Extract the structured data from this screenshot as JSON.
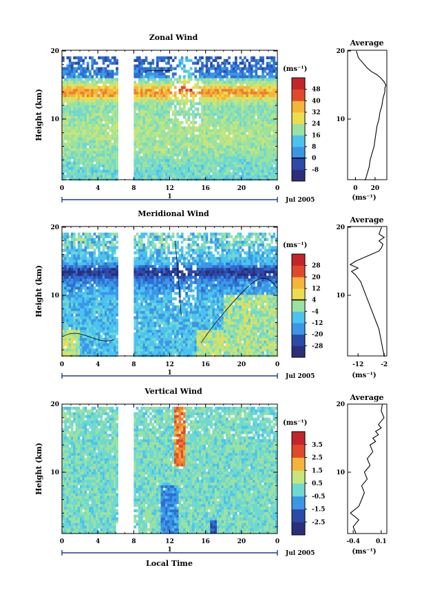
{
  "chart_data": [
    {
      "type": "heatmap",
      "title": "Zonal Wind",
      "ylabel": "Height (km)",
      "xlabel": "",
      "x_ticks": [
        "0",
        "4",
        "8",
        "12",
        "16",
        "20",
        "0"
      ],
      "y_ticks": [
        "10",
        "20"
      ],
      "xlim": [
        0,
        24
      ],
      "ylim": [
        1,
        20
      ],
      "date_axis": {
        "marker": "1",
        "label": "Jul 2005"
      },
      "colorbar": {
        "unit": "(ms⁻¹)",
        "levels": [
          "-8",
          "0",
          "8",
          "16",
          "24",
          "32",
          "40",
          "48"
        ],
        "range": [
          -12,
          52
        ]
      },
      "gap_hours": [
        [
          6.2,
          8.1
        ]
      ],
      "profile": {
        "title": "Average",
        "x_ticks": [
          "0",
          "20"
        ],
        "y_ticks": [
          "10",
          "20"
        ],
        "xlim": [
          -8,
          32
        ],
        "ylim": [
          1,
          20
        ],
        "xunit": "(ms⁻¹)",
        "x": [
          10,
          12,
          14,
          15,
          17,
          19,
          20,
          21,
          22,
          24,
          25,
          27,
          28,
          30,
          30,
          31,
          29,
          26,
          22,
          16,
          12,
          9,
          6,
          3,
          1
        ],
        "y": [
          1,
          2,
          3,
          4,
          5,
          6,
          7,
          8,
          9,
          10,
          11,
          12,
          13,
          14,
          14.5,
          15,
          15.5,
          16,
          16.5,
          17,
          17.5,
          18,
          18.5,
          19,
          20
        ]
      }
    },
    {
      "type": "heatmap",
      "title": "Meridional Wind",
      "ylabel": "Height (km)",
      "xlabel": "",
      "x_ticks": [
        "0",
        "4",
        "8",
        "12",
        "16",
        "20",
        "0"
      ],
      "y_ticks": [
        "10",
        "20"
      ],
      "xlim": [
        0,
        24
      ],
      "ylim": [
        1,
        20
      ],
      "date_axis": {
        "marker": "1",
        "label": "Jul 2005"
      },
      "colorbar": {
        "unit": "(ms⁻¹)",
        "levels": [
          "-28",
          "-20",
          "-12",
          "-4",
          "4",
          "12",
          "20",
          "28"
        ],
        "range": [
          -32,
          32
        ]
      },
      "gap_hours": [
        [
          6.2,
          8.1
        ]
      ],
      "profile": {
        "title": "Average",
        "x_ticks": [
          "-12",
          "-2"
        ],
        "y_ticks": [
          "10",
          "20"
        ],
        "xlim": [
          -16,
          -1
        ],
        "ylim": [
          1,
          20
        ],
        "xunit": "(ms⁻¹)",
        "x": [
          -2,
          -2.5,
          -3,
          -3.5,
          -4,
          -5,
          -6,
          -7,
          -8,
          -9,
          -10,
          -11,
          -12,
          -13,
          -14.5,
          -12,
          -15,
          -13,
          -10,
          -7,
          -4,
          -3,
          -2.5,
          -4,
          -2,
          -4,
          -3
        ],
        "y": [
          1,
          2,
          3,
          4,
          5,
          6,
          7,
          8,
          9,
          10,
          11,
          12,
          12.5,
          13,
          13.5,
          14,
          14.5,
          15,
          15.5,
          16,
          16.5,
          17,
          17.5,
          18,
          18.5,
          19,
          20
        ]
      }
    },
    {
      "type": "heatmap",
      "title": "Vertical Wind",
      "ylabel": "Height (km)",
      "xlabel": "Local Time",
      "x_ticks": [
        "0",
        "4",
        "8",
        "12",
        "16",
        "20",
        "0"
      ],
      "y_ticks": [
        "10",
        "20"
      ],
      "xlim": [
        0,
        24
      ],
      "ylim": [
        1,
        20
      ],
      "date_axis": {
        "marker": "1",
        "label": "Jul 2005"
      },
      "colorbar": {
        "unit": "(ms⁻¹)",
        "levels": [
          "-2.5",
          "-1.5",
          "-0.5",
          "0.5",
          "1.5",
          "2.5",
          "3.5"
        ],
        "range": [
          -3.0,
          4.0
        ]
      },
      "gap_hours": [
        [
          6.2,
          8.1
        ]
      ],
      "profile": {
        "title": "Average",
        "x_ticks": [
          "-0.4",
          "0.1"
        ],
        "y_ticks": [
          "10",
          "20"
        ],
        "xlim": [
          -0.5,
          0.2
        ],
        "ylim": [
          1,
          20
        ],
        "xunit": "(ms⁻¹)",
        "x": [
          -0.35,
          -0.4,
          -0.3,
          -0.45,
          -0.3,
          -0.25,
          -0.2,
          -0.25,
          -0.15,
          -0.2,
          -0.1,
          -0.15,
          -0.05,
          -0.1,
          0.0,
          -0.05,
          0.05,
          0.0,
          0.1,
          0.05,
          0.15,
          0.1,
          0.12
        ],
        "y": [
          1,
          2,
          3,
          4,
          5,
          6,
          7,
          8,
          9,
          10,
          11,
          12,
          13,
          14,
          14.5,
          15,
          15.5,
          16,
          16.5,
          17,
          18,
          19,
          20
        ]
      }
    }
  ]
}
